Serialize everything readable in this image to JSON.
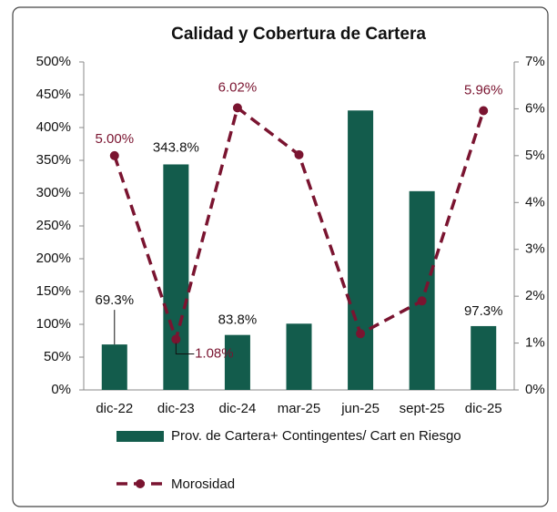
{
  "chart_data": {
    "type": "bar",
    "title": "Calidad y Cobertura de Cartera",
    "categories": [
      "dic-22",
      "dic-23",
      "dic-24",
      "mar-25",
      "jun-25",
      "sept-25",
      "dic-25"
    ],
    "series": [
      {
        "name": "Prov. de Cartera+ Contingentes/ Cart en Riesgo",
        "type": "bar",
        "color": "#135c4c",
        "values": [
          69.3,
          343.8,
          83.8,
          101,
          426,
          303,
          97.3
        ],
        "value_labels": [
          "69.3%",
          "343.8%",
          "83.8%",
          null,
          null,
          null,
          "97.3%"
        ]
      },
      {
        "name": "Morosidad",
        "type": "line",
        "axis": "y2",
        "color": "#7a1430",
        "values": [
          5.0,
          1.08,
          6.02,
          5.02,
          1.2,
          1.9,
          5.96
        ],
        "value_labels": [
          "5.00%",
          "1.08%",
          "6.02%",
          null,
          null,
          null,
          "5.96%"
        ]
      }
    ],
    "ylim": [
      0,
      500
    ],
    "yticks": [
      {
        "value": 0,
        "label": "0%"
      },
      {
        "value": 50,
        "label": "50%"
      },
      {
        "value": 100,
        "label": "100%"
      },
      {
        "value": 150,
        "label": "150%"
      },
      {
        "value": 200,
        "label": "200%"
      },
      {
        "value": 250,
        "label": "250%"
      },
      {
        "value": 300,
        "label": "300%"
      },
      {
        "value": 350,
        "label": "350%"
      },
      {
        "value": 400,
        "label": "400%"
      },
      {
        "value": 450,
        "label": "450%"
      },
      {
        "value": 500,
        "label": "500%"
      }
    ],
    "y2lim": [
      0,
      7
    ],
    "y2ticks": [
      {
        "value": 0,
        "label": "0%"
      },
      {
        "value": 1,
        "label": "1%"
      },
      {
        "value": 2,
        "label": "2%"
      },
      {
        "value": 3,
        "label": "3%"
      },
      {
        "value": 4,
        "label": "4%"
      },
      {
        "value": 5,
        "label": "5%"
      },
      {
        "value": 6,
        "label": "6%"
      },
      {
        "value": 7,
        "label": "7%"
      }
    ],
    "legend": "bottom"
  }
}
